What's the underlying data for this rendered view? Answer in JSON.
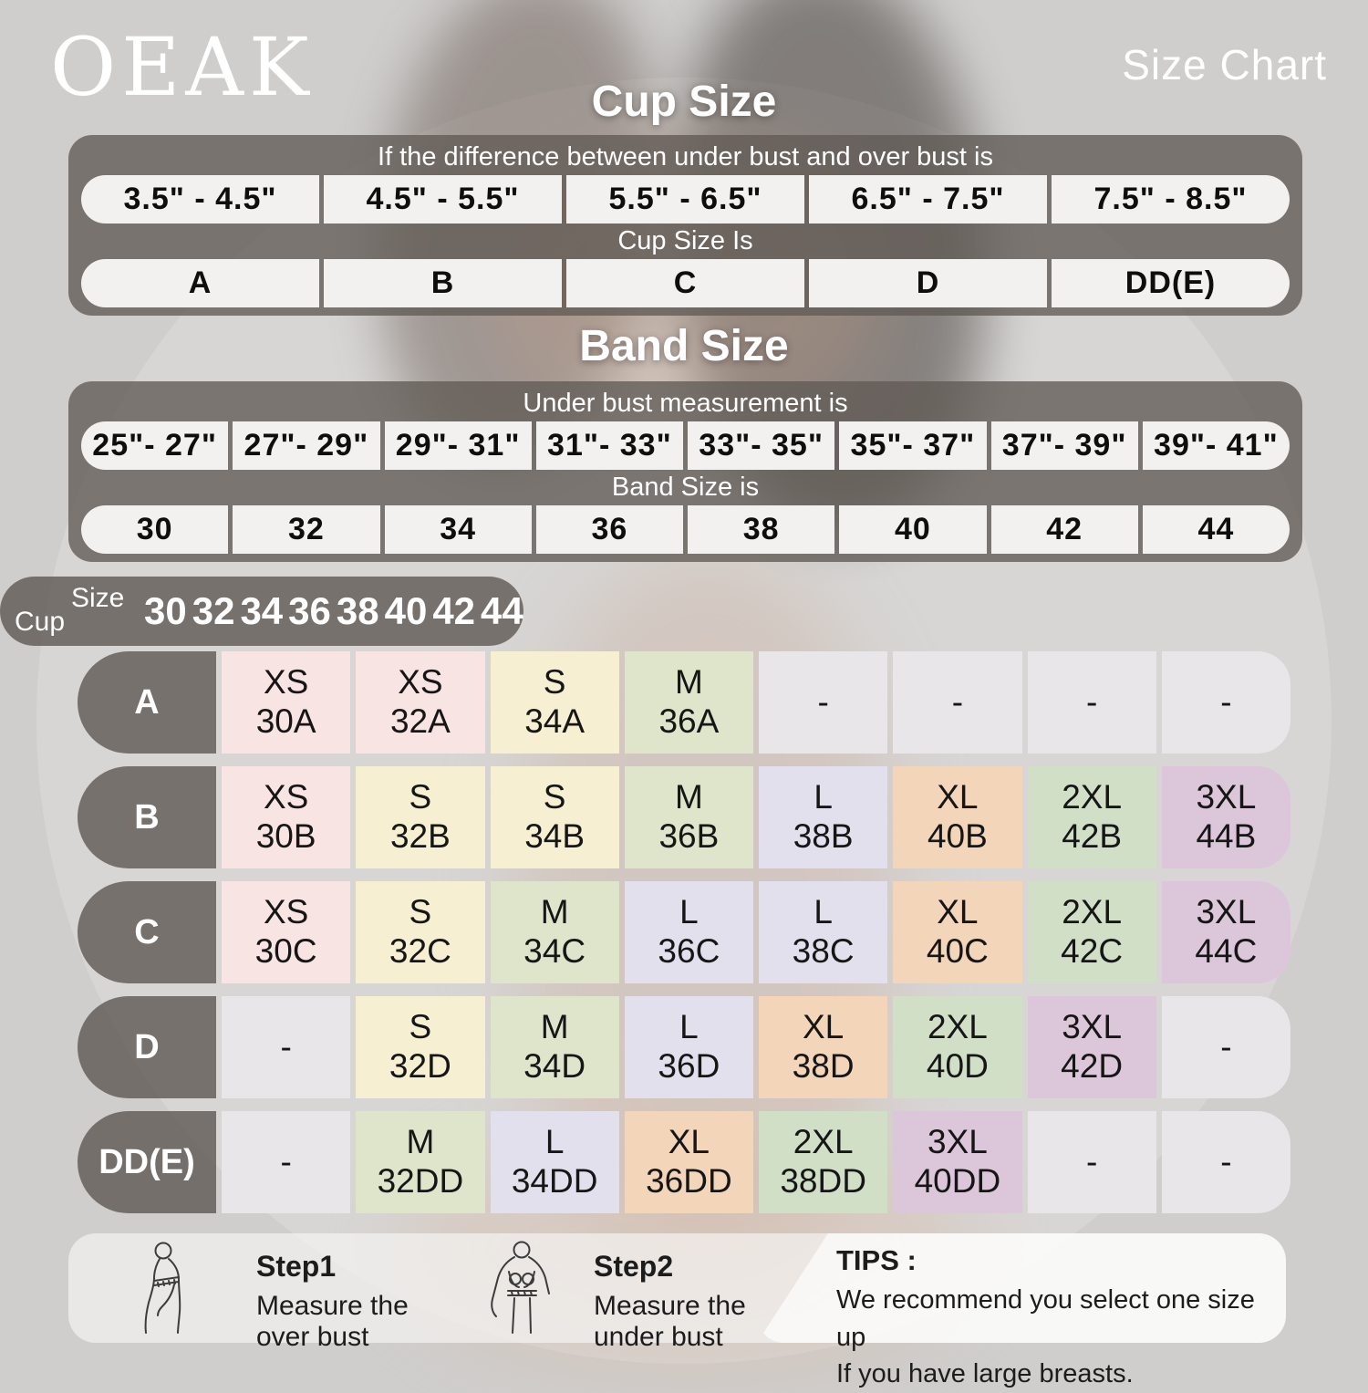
{
  "brand": "OEAK",
  "header": {
    "title": "Size Chart"
  },
  "cup_section": {
    "title": "Cup Size",
    "condition_label": "If the  difference between under bust and over bust is",
    "ranges": [
      "3.5\" -  4.5\"",
      "4.5\" -  5.5\"",
      "5.5\" -  6.5\"",
      "6.5\" -  7.5\"",
      "7.5\" -  8.5\""
    ],
    "result_label": "Cup Size Is",
    "cups": [
      "A",
      "B",
      "C",
      "D",
      "DD(E)"
    ]
  },
  "band_section": {
    "title": "Band Size",
    "condition_label": "Under bust measurement is",
    "ranges": [
      "25\"- 27\"",
      "27\"- 29\"",
      "29\"- 31\"",
      "31\"- 33\"",
      "33\"- 35\"",
      "35\"- 37\"",
      "37\"- 39\"",
      "39\"- 41\""
    ],
    "result_label": "Band Size is",
    "bands": [
      "30",
      "32",
      "34",
      "36",
      "38",
      "40",
      "42",
      "44"
    ]
  },
  "size_matrix": {
    "corner_top": "Size",
    "corner_bottom": "Cup",
    "columns": [
      "30",
      "32",
      "34",
      "36",
      "38",
      "40",
      "42",
      "44"
    ],
    "rows": [
      {
        "label": "A",
        "cells": [
          {
            "size": "XS",
            "code": "30A",
            "color": "pink"
          },
          {
            "size": "XS",
            "code": "32A",
            "color": "pink"
          },
          {
            "size": "S",
            "code": "34A",
            "color": "cream"
          },
          {
            "size": "M",
            "code": "36A",
            "color": "green"
          },
          {
            "size": "-",
            "code": "",
            "color": "gray"
          },
          {
            "size": "-",
            "code": "",
            "color": "gray"
          },
          {
            "size": "-",
            "code": "",
            "color": "gray"
          },
          {
            "size": "-",
            "code": "",
            "color": "gray"
          }
        ]
      },
      {
        "label": "B",
        "cells": [
          {
            "size": "XS",
            "code": "30B",
            "color": "pink"
          },
          {
            "size": "S",
            "code": "32B",
            "color": "cream"
          },
          {
            "size": "S",
            "code": "34B",
            "color": "cream"
          },
          {
            "size": "M",
            "code": "36B",
            "color": "green"
          },
          {
            "size": "L",
            "code": "38B",
            "color": "lavender"
          },
          {
            "size": "XL",
            "code": "40B",
            "color": "peach"
          },
          {
            "size": "2XL",
            "code": "42B",
            "color": "sage"
          },
          {
            "size": "3XL",
            "code": "44B",
            "color": "mauve"
          }
        ]
      },
      {
        "label": "C",
        "cells": [
          {
            "size": "XS",
            "code": "30C",
            "color": "pink"
          },
          {
            "size": "S",
            "code": "32C",
            "color": "cream"
          },
          {
            "size": "M",
            "code": "34C",
            "color": "green"
          },
          {
            "size": "L",
            "code": "36C",
            "color": "lavender"
          },
          {
            "size": "L",
            "code": "38C",
            "color": "lavender"
          },
          {
            "size": "XL",
            "code": "40C",
            "color": "peach"
          },
          {
            "size": "2XL",
            "code": "42C",
            "color": "sage"
          },
          {
            "size": "3XL",
            "code": "44C",
            "color": "mauve"
          }
        ]
      },
      {
        "label": "D",
        "cells": [
          {
            "size": "-",
            "code": "",
            "color": "gray"
          },
          {
            "size": "S",
            "code": "32D",
            "color": "cream"
          },
          {
            "size": "M",
            "code": "34D",
            "color": "green"
          },
          {
            "size": "L",
            "code": "36D",
            "color": "lavender"
          },
          {
            "size": "XL",
            "code": "38D",
            "color": "peach"
          },
          {
            "size": "2XL",
            "code": "40D",
            "color": "sage"
          },
          {
            "size": "3XL",
            "code": "42D",
            "color": "mauve"
          },
          {
            "size": "-",
            "code": "",
            "color": "gray"
          }
        ]
      },
      {
        "label": "DD(E)",
        "cells": [
          {
            "size": "-",
            "code": "",
            "color": "gray"
          },
          {
            "size": "M",
            "code": "32DD",
            "color": "green"
          },
          {
            "size": "L",
            "code": "34DD",
            "color": "lavender"
          },
          {
            "size": "XL",
            "code": "36DD",
            "color": "peach"
          },
          {
            "size": "2XL",
            "code": "38DD",
            "color": "sage"
          },
          {
            "size": "3XL",
            "code": "40DD",
            "color": "mauve"
          },
          {
            "size": "-",
            "code": "",
            "color": "gray"
          },
          {
            "size": "-",
            "code": "",
            "color": "gray"
          }
        ]
      }
    ]
  },
  "cell_colors": {
    "pink": "#f8e4e2",
    "cream": "#f7efd1",
    "green": "#dfe5cb",
    "sage": "#d2dfc7",
    "lavender": "#e3e0ee",
    "peach": "#f3d5ba",
    "mauve": "#dcc7da",
    "gray": "#e8e6e8"
  },
  "guide": {
    "steps": [
      {
        "title": "Step1",
        "lines": [
          "Measure the",
          "over bust"
        ]
      },
      {
        "title": "Step2",
        "lines": [
          "Measure the",
          "under bust"
        ]
      }
    ],
    "tips": {
      "title": "TIPS :",
      "lines": [
        "We recommend you select one size up",
        "If you have large breasts."
      ]
    }
  }
}
